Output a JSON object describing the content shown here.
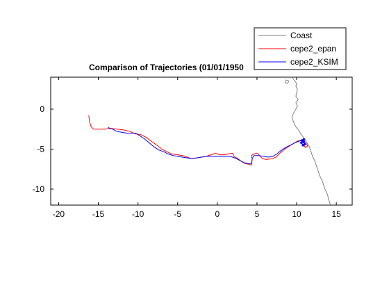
{
  "chart_data": {
    "type": "line",
    "title": "Comparison of Trajectories (01/01/1950",
    "xlabel": "",
    "ylabel": "",
    "xlim": [
      -21,
      17
    ],
    "ylim": [
      -12,
      4
    ],
    "xticks": [
      -20,
      -15,
      -10,
      -5,
      0,
      5,
      10,
      15
    ],
    "yticks": [
      0,
      -5,
      -10
    ],
    "xtick_labels": [
      "-20",
      "-15",
      "-10",
      "-5",
      "0",
      "5",
      "10",
      "15"
    ],
    "ytick_labels": [
      "0",
      "-5",
      "-10"
    ],
    "grid": false,
    "legend_position": "top-right",
    "series": [
      {
        "name": "Coast",
        "color": "#808080",
        "points": [
          [
            9.4,
            4.0
          ],
          [
            9.7,
            3.6
          ],
          [
            10.0,
            3.2
          ],
          [
            9.9,
            2.9
          ],
          [
            10.1,
            2.5
          ],
          [
            10.0,
            2.1
          ],
          [
            9.9,
            1.6
          ],
          [
            10.2,
            1.2
          ],
          [
            9.9,
            0.8
          ],
          [
            10.1,
            0.4
          ],
          [
            9.9,
            0.0
          ],
          [
            9.6,
            -0.5
          ],
          [
            9.4,
            -1.0
          ],
          [
            9.6,
            -1.6
          ],
          [
            9.9,
            -2.2
          ],
          [
            10.3,
            -2.7
          ],
          [
            10.6,
            -3.2
          ],
          [
            11.0,
            -3.7
          ],
          [
            11.3,
            -4.2
          ],
          [
            11.6,
            -4.7
          ],
          [
            11.8,
            -5.3
          ],
          [
            12.0,
            -5.9
          ],
          [
            12.3,
            -6.5
          ],
          [
            12.5,
            -7.1
          ],
          [
            12.7,
            -7.7
          ],
          [
            12.9,
            -8.3
          ],
          [
            13.2,
            -8.9
          ],
          [
            13.4,
            -9.5
          ],
          [
            13.6,
            -10.1
          ],
          [
            13.9,
            -10.7
          ],
          [
            14.0,
            -11.2
          ],
          [
            14.2,
            -11.8
          ],
          [
            14.3,
            -12.0
          ]
        ]
      },
      {
        "name": "cepe2_epan",
        "color": "#ff0000",
        "points": [
          [
            -16.2,
            -0.8
          ],
          [
            -16.1,
            -1.6
          ],
          [
            -15.9,
            -2.2
          ],
          [
            -15.6,
            -2.5
          ],
          [
            -14.8,
            -2.5
          ],
          [
            -14.2,
            -2.5
          ],
          [
            -13.5,
            -2.4
          ],
          [
            -12.6,
            -2.5
          ],
          [
            -11.8,
            -2.6
          ],
          [
            -11.0,
            -2.8
          ],
          [
            -10.3,
            -3.1
          ],
          [
            -9.6,
            -3.2
          ],
          [
            -9.0,
            -3.5
          ],
          [
            -8.2,
            -4.1
          ],
          [
            -7.5,
            -4.6
          ],
          [
            -7.0,
            -5.0
          ],
          [
            -6.4,
            -5.3
          ],
          [
            -5.8,
            -5.6
          ],
          [
            -5.0,
            -5.7
          ],
          [
            -4.4,
            -5.8
          ],
          [
            -3.8,
            -6.0
          ],
          [
            -3.2,
            -6.2
          ],
          [
            -2.6,
            -6.1
          ],
          [
            -2.0,
            -6.0
          ],
          [
            -1.4,
            -5.9
          ],
          [
            -0.8,
            -5.7
          ],
          [
            -0.2,
            -5.5
          ],
          [
            0.3,
            -5.7
          ],
          [
            0.9,
            -5.7
          ],
          [
            1.4,
            -5.6
          ],
          [
            1.9,
            -5.5
          ],
          [
            2.1,
            -5.9
          ],
          [
            2.6,
            -6.2
          ],
          [
            3.0,
            -6.5
          ],
          [
            3.5,
            -6.8
          ],
          [
            4.0,
            -6.9
          ],
          [
            4.3,
            -7.0
          ],
          [
            4.4,
            -6.3
          ],
          [
            4.3,
            -5.8
          ],
          [
            4.6,
            -5.6
          ],
          [
            5.0,
            -5.5
          ],
          [
            5.3,
            -5.8
          ],
          [
            5.7,
            -6.2
          ],
          [
            6.2,
            -6.3
          ],
          [
            6.9,
            -6.2
          ],
          [
            7.4,
            -6.0
          ],
          [
            7.9,
            -5.5
          ],
          [
            8.5,
            -5.0
          ],
          [
            9.1,
            -4.6
          ],
          [
            9.6,
            -4.3
          ],
          [
            10.1,
            -4.0
          ],
          [
            10.5,
            -3.9
          ],
          [
            10.9,
            -4.0
          ],
          [
            11.2,
            -4.3
          ],
          [
            11.4,
            -4.6
          ],
          [
            11.1,
            -4.8
          ],
          [
            10.8,
            -4.4
          ]
        ]
      },
      {
        "name": "cepe2_KSIM",
        "color": "#0000ff",
        "points": [
          [
            -13.8,
            -2.3
          ],
          [
            -13.2,
            -2.5
          ],
          [
            -12.6,
            -2.8
          ],
          [
            -12.0,
            -2.9
          ],
          [
            -11.4,
            -3.0
          ],
          [
            -10.8,
            -3.0
          ],
          [
            -10.3,
            -3.0
          ],
          [
            -9.8,
            -3.3
          ],
          [
            -9.2,
            -3.7
          ],
          [
            -8.6,
            -4.2
          ],
          [
            -8.0,
            -4.7
          ],
          [
            -7.4,
            -5.1
          ],
          [
            -6.8,
            -5.3
          ],
          [
            -6.2,
            -5.6
          ],
          [
            -5.6,
            -5.8
          ],
          [
            -5.0,
            -5.9
          ],
          [
            -4.4,
            -6.0
          ],
          [
            -3.8,
            -6.1
          ],
          [
            -3.2,
            -6.2
          ],
          [
            -2.6,
            -6.1
          ],
          [
            -2.0,
            -6.0
          ],
          [
            -1.4,
            -5.9
          ],
          [
            -0.8,
            -5.9
          ],
          [
            -0.2,
            -5.9
          ],
          [
            0.4,
            -5.9
          ],
          [
            1.0,
            -5.9
          ],
          [
            1.6,
            -5.9
          ],
          [
            2.2,
            -6.1
          ],
          [
            2.8,
            -6.4
          ],
          [
            3.4,
            -6.7
          ],
          [
            3.9,
            -6.8
          ],
          [
            4.3,
            -6.8
          ],
          [
            4.4,
            -6.2
          ],
          [
            4.6,
            -5.8
          ],
          [
            5.2,
            -5.8
          ],
          [
            5.8,
            -5.9
          ],
          [
            6.4,
            -6.0
          ],
          [
            7.0,
            -5.9
          ],
          [
            7.5,
            -5.6
          ],
          [
            8.0,
            -5.2
          ],
          [
            8.6,
            -4.8
          ],
          [
            9.2,
            -4.5
          ],
          [
            9.8,
            -4.2
          ],
          [
            10.3,
            -4.0
          ],
          [
            10.7,
            -3.9
          ],
          [
            10.9,
            -4.1
          ],
          [
            11.0,
            -4.4
          ],
          [
            10.8,
            -4.5
          ],
          [
            10.6,
            -4.2
          ],
          [
            10.9,
            -3.8
          ]
        ]
      }
    ]
  }
}
